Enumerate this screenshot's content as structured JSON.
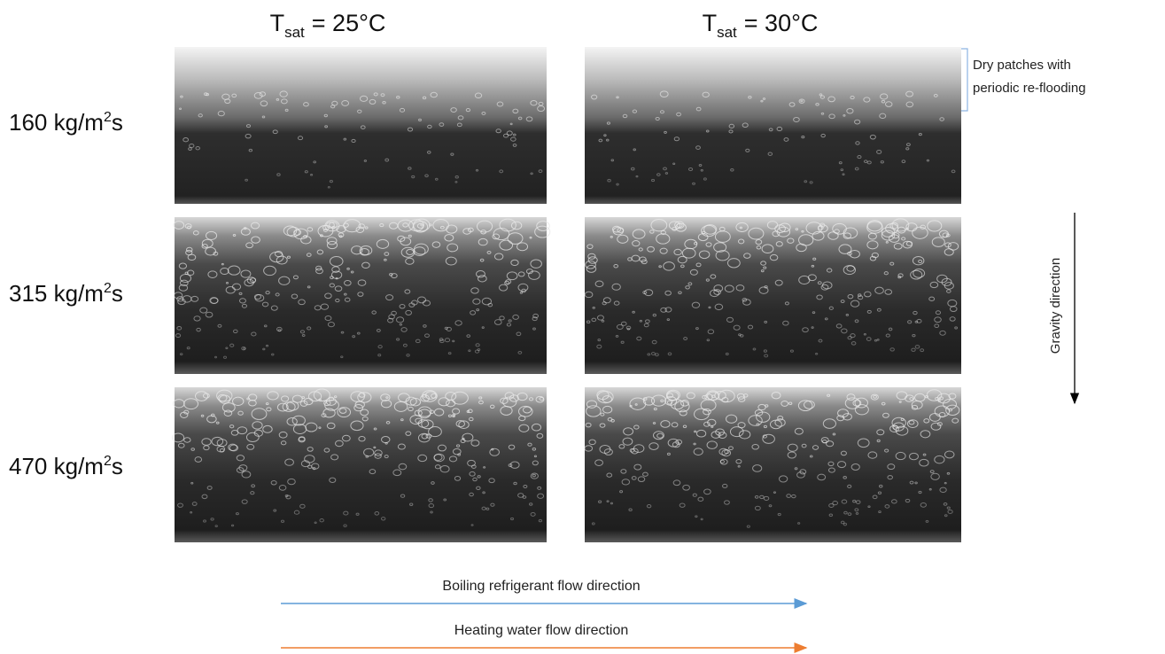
{
  "columns": [
    {
      "symbol": "T",
      "subscript": "sat",
      "value": "= 25°C"
    },
    {
      "symbol": "T",
      "subscript": "sat",
      "value": "= 30°C"
    }
  ],
  "rows": [
    {
      "prefix": "160 kg/m",
      "superscript": "2",
      "suffix": "s"
    },
    {
      "prefix": "315 kg/m",
      "superscript": "2",
      "suffix": "s"
    },
    {
      "prefix": "470 kg/m",
      "superscript": "2",
      "suffix": "s"
    }
  ],
  "annotations": {
    "dry_patches": [
      "Dry patches with",
      "periodic re-flooding"
    ],
    "gravity": "Gravity direction"
  },
  "flows": {
    "refrigerant": "Boiling refrigerant flow direction",
    "water": "Heating water flow direction"
  }
}
